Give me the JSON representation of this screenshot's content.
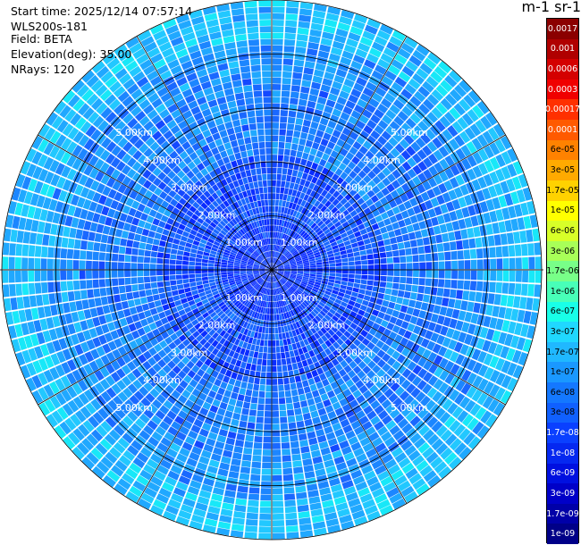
{
  "header": {
    "start_time": "Start time: 2025/12/14 07:57:14",
    "instrument": "WLS200s-181",
    "field": "Field: BETA",
    "elevation": "Elevation(deg): 35.00",
    "nrays": "NRays: 120"
  },
  "colorbar": {
    "title": "m-1 sr-1",
    "ticks": [
      "0.0017",
      "0.001",
      "0.0006",
      "0.0003",
      "0.00017",
      "0.0001",
      "6e-05",
      "3e-05",
      "1.7e-05",
      "1e-05",
      "6e-06",
      "3e-06",
      "1.7e-06",
      "1e-06",
      "6e-07",
      "3e-07",
      "1.7e-07",
      "1e-07",
      "6e-08",
      "3e-08",
      "1.7e-08",
      "1e-08",
      "6e-09",
      "3e-09",
      "1.7e-09",
      "1e-09"
    ],
    "colors": [
      "#8b0000",
      "#b00000",
      "#d40000",
      "#f00000",
      "#ff3000",
      "#ff5a00",
      "#ff8200",
      "#ffaa00",
      "#ffd200",
      "#ffff00",
      "#d8ff28",
      "#a8ff58",
      "#78ff88",
      "#48ffb8",
      "#18ffe8",
      "#20d8ff",
      "#20b8ff",
      "#1a98ff",
      "#1478ff",
      "#1060ff",
      "#0a40ff",
      "#0528f0",
      "#0010e0",
      "#0000c8",
      "#0000a8",
      "#000088"
    ]
  },
  "chart_data": {
    "type": "heatmap",
    "projection": "polar PPI",
    "nrays": 120,
    "range_labels": [
      "1.00km",
      "2.00km",
      "3.00km",
      "4.00km",
      "5.00km"
    ],
    "range_rings_km": [
      1,
      2,
      3,
      4,
      5
    ],
    "max_range_km": 5.0,
    "color_scale": "log",
    "value_range": [
      1e-09,
      0.0017
    ],
    "field": "BETA",
    "elevation_deg": 35.0,
    "dominant_values": {
      "near_center": 1e-08,
      "mid_range": 6e-08,
      "outer_ring": 1e-07
    }
  }
}
